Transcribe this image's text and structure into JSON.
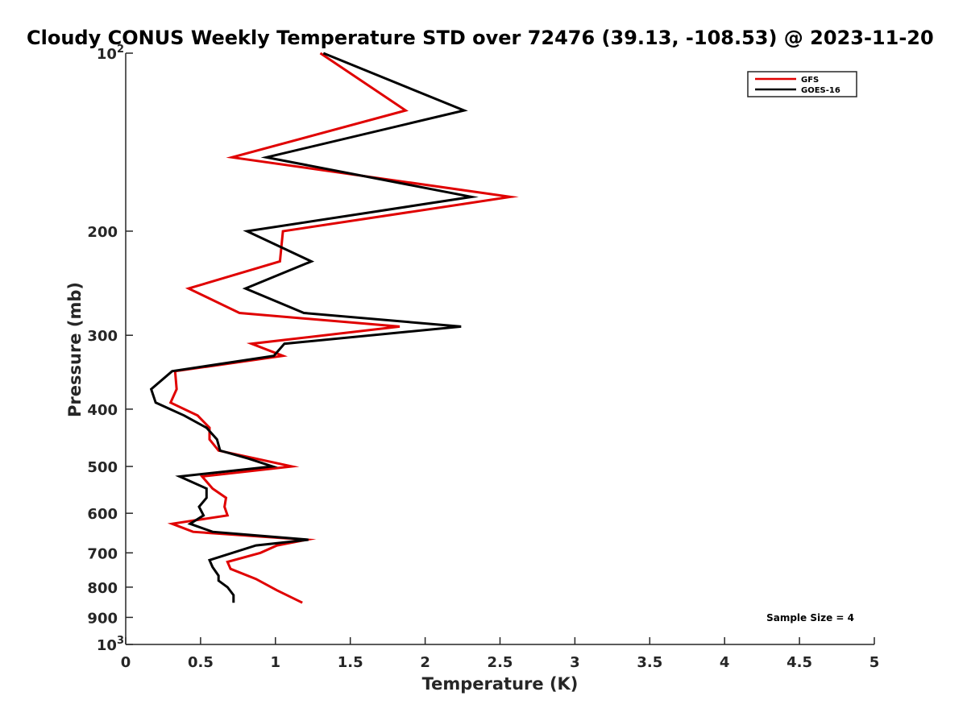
{
  "chart_data": {
    "type": "line",
    "title": "Cloudy CONUS Weekly Temperature STD over 72476 (39.13, -108.53) @ 2023-11-20",
    "xlabel": "Temperature (K)",
    "ylabel": "Pressure (mb)",
    "xlim": [
      0,
      5
    ],
    "ylim": [
      100,
      1000
    ],
    "y_scale": "log",
    "y_reversed": true,
    "x_ticks": [
      "0",
      "0.5",
      "1",
      "1.5",
      "2",
      "2.5",
      "3",
      "3.5",
      "4",
      "4.5",
      "5"
    ],
    "y_ticks": [
      {
        "value": 100,
        "label": "10",
        "sup": "2"
      },
      {
        "value": 200,
        "label": "200",
        "sup": ""
      },
      {
        "value": 300,
        "label": "300",
        "sup": ""
      },
      {
        "value": 400,
        "label": "400",
        "sup": ""
      },
      {
        "value": 500,
        "label": "500",
        "sup": ""
      },
      {
        "value": 600,
        "label": "600",
        "sup": ""
      },
      {
        "value": 700,
        "label": "700",
        "sup": ""
      },
      {
        "value": 800,
        "label": "800",
        "sup": ""
      },
      {
        "value": 900,
        "label": "900",
        "sup": ""
      },
      {
        "value": 1000,
        "label": "10",
        "sup": "3"
      }
    ],
    "grid": false,
    "legend_position": "top-right",
    "annotation": "Sample Size = 4",
    "series": [
      {
        "name": "GFS",
        "color": "#e00000",
        "points": [
          {
            "x": 1.3,
            "y": 100
          },
          {
            "x": 1.87,
            "y": 125
          },
          {
            "x": 0.71,
            "y": 150
          },
          {
            "x": 2.57,
            "y": 175
          },
          {
            "x": 1.05,
            "y": 200
          },
          {
            "x": 1.03,
            "y": 225
          },
          {
            "x": 0.42,
            "y": 250
          },
          {
            "x": 0.76,
            "y": 275
          },
          {
            "x": 1.83,
            "y": 290
          },
          {
            "x": 0.84,
            "y": 310
          },
          {
            "x": 1.05,
            "y": 325
          },
          {
            "x": 0.33,
            "y": 345
          },
          {
            "x": 0.34,
            "y": 370
          },
          {
            "x": 0.3,
            "y": 390
          },
          {
            "x": 0.48,
            "y": 410
          },
          {
            "x": 0.56,
            "y": 430
          },
          {
            "x": 0.56,
            "y": 450
          },
          {
            "x": 0.62,
            "y": 470
          },
          {
            "x": 0.87,
            "y": 485
          },
          {
            "x": 1.11,
            "y": 500
          },
          {
            "x": 0.51,
            "y": 520
          },
          {
            "x": 0.58,
            "y": 545
          },
          {
            "x": 0.67,
            "y": 565
          },
          {
            "x": 0.66,
            "y": 585
          },
          {
            "x": 0.68,
            "y": 605
          },
          {
            "x": 0.31,
            "y": 625
          },
          {
            "x": 0.45,
            "y": 645
          },
          {
            "x": 1.21,
            "y": 665
          },
          {
            "x": 1.01,
            "y": 680
          },
          {
            "x": 0.9,
            "y": 700
          },
          {
            "x": 0.68,
            "y": 725
          },
          {
            "x": 0.7,
            "y": 745
          },
          {
            "x": 0.87,
            "y": 775
          },
          {
            "x": 1.01,
            "y": 810
          },
          {
            "x": 1.18,
            "y": 850
          }
        ]
      },
      {
        "name": "GOES-16",
        "color": "#000000",
        "points": [
          {
            "x": 1.32,
            "y": 100
          },
          {
            "x": 2.26,
            "y": 125
          },
          {
            "x": 0.94,
            "y": 150
          },
          {
            "x": 2.31,
            "y": 175
          },
          {
            "x": 0.81,
            "y": 200
          },
          {
            "x": 1.24,
            "y": 225
          },
          {
            "x": 0.8,
            "y": 250
          },
          {
            "x": 1.19,
            "y": 275
          },
          {
            "x": 2.24,
            "y": 290
          },
          {
            "x": 1.06,
            "y": 310
          },
          {
            "x": 0.99,
            "y": 325
          },
          {
            "x": 0.31,
            "y": 345
          },
          {
            "x": 0.17,
            "y": 370
          },
          {
            "x": 0.2,
            "y": 390
          },
          {
            "x": 0.39,
            "y": 410
          },
          {
            "x": 0.54,
            "y": 430
          },
          {
            "x": 0.61,
            "y": 450
          },
          {
            "x": 0.63,
            "y": 470
          },
          {
            "x": 0.82,
            "y": 485
          },
          {
            "x": 0.98,
            "y": 500
          },
          {
            "x": 0.36,
            "y": 520
          },
          {
            "x": 0.54,
            "y": 545
          },
          {
            "x": 0.54,
            "y": 565
          },
          {
            "x": 0.49,
            "y": 585
          },
          {
            "x": 0.52,
            "y": 605
          },
          {
            "x": 0.43,
            "y": 625
          },
          {
            "x": 0.58,
            "y": 645
          },
          {
            "x": 1.22,
            "y": 665
          },
          {
            "x": 0.87,
            "y": 680
          },
          {
            "x": 0.56,
            "y": 720
          },
          {
            "x": 0.58,
            "y": 740
          },
          {
            "x": 0.62,
            "y": 765
          },
          {
            "x": 0.62,
            "y": 780
          },
          {
            "x": 0.68,
            "y": 800
          },
          {
            "x": 0.72,
            "y": 825
          },
          {
            "x": 0.72,
            "y": 850
          }
        ]
      }
    ]
  }
}
